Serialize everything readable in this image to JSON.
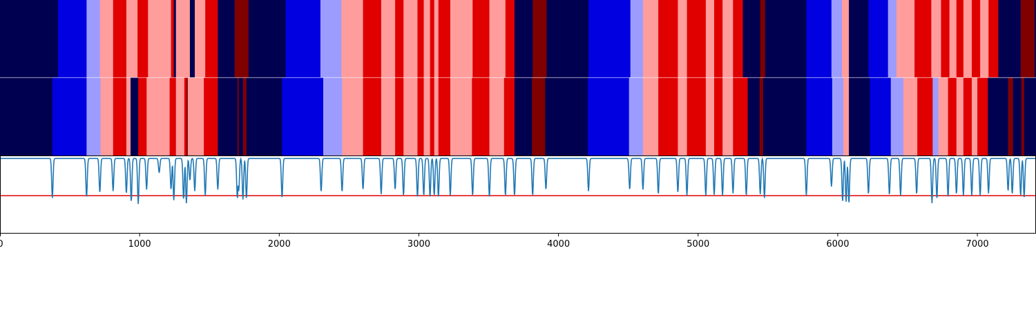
{
  "chart_data": [
    {
      "type": "heatmap",
      "name": "segmentation-track-1",
      "colors": {
        "0": "#000050",
        "1": "#0000e0",
        "2": "#9c9cff",
        "3": "#ff9c9c",
        "4": "#e00000",
        "5": "#800000"
      },
      "segments": [
        [
          0,
          415,
          0
        ],
        [
          415,
          620,
          1
        ],
        [
          620,
          715,
          2
        ],
        [
          715,
          810,
          3
        ],
        [
          810,
          905,
          4
        ],
        [
          905,
          985,
          3
        ],
        [
          985,
          1060,
          4
        ],
        [
          1060,
          1225,
          3
        ],
        [
          1225,
          1245,
          4
        ],
        [
          1245,
          1260,
          0
        ],
        [
          1260,
          1360,
          3
        ],
        [
          1360,
          1395,
          0
        ],
        [
          1395,
          1470,
          3
        ],
        [
          1470,
          1560,
          4
        ],
        [
          1560,
          1680,
          0
        ],
        [
          1680,
          1780,
          5
        ],
        [
          1780,
          2045,
          0
        ],
        [
          2045,
          2295,
          1
        ],
        [
          2295,
          2445,
          2
        ],
        [
          2445,
          2600,
          3
        ],
        [
          2600,
          2730,
          4
        ],
        [
          2730,
          2830,
          3
        ],
        [
          2830,
          2890,
          4
        ],
        [
          2890,
          2990,
          3
        ],
        [
          2990,
          3035,
          4
        ],
        [
          3035,
          3080,
          3
        ],
        [
          3080,
          3110,
          4
        ],
        [
          3110,
          3140,
          3
        ],
        [
          3140,
          3225,
          4
        ],
        [
          3225,
          3385,
          3
        ],
        [
          3385,
          3505,
          4
        ],
        [
          3505,
          3620,
          3
        ],
        [
          3620,
          3685,
          4
        ],
        [
          3685,
          3815,
          0
        ],
        [
          3815,
          3915,
          5
        ],
        [
          3915,
          4215,
          0
        ],
        [
          4215,
          4515,
          1
        ],
        [
          4515,
          4605,
          2
        ],
        [
          4605,
          4715,
          3
        ],
        [
          4715,
          4855,
          4
        ],
        [
          4855,
          4920,
          3
        ],
        [
          4920,
          5055,
          4
        ],
        [
          5055,
          5115,
          3
        ],
        [
          5115,
          5175,
          4
        ],
        [
          5175,
          5250,
          3
        ],
        [
          5250,
          5320,
          4
        ],
        [
          5320,
          5445,
          0
        ],
        [
          5445,
          5480,
          5
        ],
        [
          5480,
          5775,
          0
        ],
        [
          5775,
          5955,
          1
        ],
        [
          5955,
          6030,
          2
        ],
        [
          6030,
          6080,
          3
        ],
        [
          6080,
          6220,
          0
        ],
        [
          6220,
          6360,
          1
        ],
        [
          6360,
          6420,
          2
        ],
        [
          6420,
          6550,
          3
        ],
        [
          6550,
          6670,
          4
        ],
        [
          6670,
          6740,
          3
        ],
        [
          6740,
          6800,
          4
        ],
        [
          6800,
          6850,
          3
        ],
        [
          6850,
          6900,
          4
        ],
        [
          6900,
          6960,
          3
        ],
        [
          6960,
          7020,
          4
        ],
        [
          7020,
          7080,
          3
        ],
        [
          7080,
          7150,
          4
        ],
        [
          7150,
          7310,
          0
        ],
        [
          7310,
          7410,
          5
        ],
        [
          7410,
          7420,
          0
        ]
      ],
      "xlim": [
        0,
        7420
      ]
    },
    {
      "type": "heatmap",
      "name": "segmentation-track-2",
      "segments": [
        [
          0,
          375,
          0
        ],
        [
          375,
          620,
          1
        ],
        [
          620,
          720,
          2
        ],
        [
          720,
          810,
          3
        ],
        [
          810,
          905,
          4
        ],
        [
          905,
          935,
          3
        ],
        [
          935,
          990,
          0
        ],
        [
          990,
          1050,
          4
        ],
        [
          1050,
          1215,
          3
        ],
        [
          1215,
          1260,
          4
        ],
        [
          1260,
          1320,
          3
        ],
        [
          1320,
          1335,
          4
        ],
        [
          1335,
          1345,
          5
        ],
        [
          1345,
          1460,
          3
        ],
        [
          1460,
          1560,
          4
        ],
        [
          1560,
          1700,
          0
        ],
        [
          1700,
          1710,
          5
        ],
        [
          1710,
          1740,
          0
        ],
        [
          1740,
          1765,
          5
        ],
        [
          1765,
          2020,
          0
        ],
        [
          2020,
          2315,
          1
        ],
        [
          2315,
          2450,
          2
        ],
        [
          2450,
          2600,
          3
        ],
        [
          2600,
          2730,
          4
        ],
        [
          2730,
          2830,
          3
        ],
        [
          2830,
          2890,
          4
        ],
        [
          2890,
          2990,
          3
        ],
        [
          2990,
          3035,
          4
        ],
        [
          3035,
          3080,
          3
        ],
        [
          3080,
          3110,
          4
        ],
        [
          3110,
          3140,
          3
        ],
        [
          3140,
          3225,
          4
        ],
        [
          3225,
          3380,
          3
        ],
        [
          3380,
          3505,
          4
        ],
        [
          3505,
          3610,
          3
        ],
        [
          3610,
          3685,
          4
        ],
        [
          3685,
          3810,
          0
        ],
        [
          3810,
          3905,
          5
        ],
        [
          3905,
          4210,
          0
        ],
        [
          4210,
          4505,
          1
        ],
        [
          4505,
          4605,
          2
        ],
        [
          4605,
          4715,
          3
        ],
        [
          4715,
          4855,
          4
        ],
        [
          4855,
          4920,
          3
        ],
        [
          4920,
          5055,
          4
        ],
        [
          5055,
          5115,
          3
        ],
        [
          5115,
          5175,
          4
        ],
        [
          5175,
          5250,
          3
        ],
        [
          5250,
          5355,
          4
        ],
        [
          5355,
          5440,
          0
        ],
        [
          5440,
          5465,
          5
        ],
        [
          5465,
          5775,
          0
        ],
        [
          5775,
          5960,
          1
        ],
        [
          5960,
          6040,
          2
        ],
        [
          6040,
          6080,
          3
        ],
        [
          6080,
          6230,
          0
        ],
        [
          6230,
          6380,
          1
        ],
        [
          6380,
          6470,
          2
        ],
        [
          6470,
          6570,
          3
        ],
        [
          6570,
          6680,
          4
        ],
        [
          6680,
          6720,
          2
        ],
        [
          6720,
          6790,
          3
        ],
        [
          6790,
          6850,
          4
        ],
        [
          6850,
          6900,
          3
        ],
        [
          6900,
          6960,
          4
        ],
        [
          6960,
          7000,
          3
        ],
        [
          7000,
          7075,
          4
        ],
        [
          7075,
          7220,
          0
        ],
        [
          7220,
          7255,
          5
        ],
        [
          7255,
          7315,
          0
        ],
        [
          7315,
          7335,
          5
        ],
        [
          7335,
          7420,
          0
        ]
      ],
      "xlim": [
        0,
        7420
      ]
    },
    {
      "type": "line",
      "name": "confidence-track",
      "line_color": "#1f77b4",
      "threshold": 0.5,
      "threshold_color": "#e00000",
      "ylim": [
        0,
        1.02
      ],
      "baseline": 0.99,
      "dips": [
        [
          375,
          0.47
        ],
        [
          620,
          0.48
        ],
        [
          715,
          0.54
        ],
        [
          810,
          0.56
        ],
        [
          905,
          0.53
        ],
        [
          940,
          0.42
        ],
        [
          990,
          0.39
        ],
        [
          1050,
          0.58
        ],
        [
          1140,
          0.8
        ],
        [
          1225,
          0.58
        ],
        [
          1245,
          0.44
        ],
        [
          1315,
          0.45
        ],
        [
          1335,
          0.4
        ],
        [
          1360,
          0.7
        ],
        [
          1395,
          0.56
        ],
        [
          1470,
          0.5
        ],
        [
          1560,
          0.58
        ],
        [
          1700,
          0.46
        ],
        [
          1710,
          0.56
        ],
        [
          1740,
          0.45
        ],
        [
          1765,
          0.46
        ],
        [
          2020,
          0.47
        ],
        [
          2300,
          0.55
        ],
        [
          2450,
          0.55
        ],
        [
          2600,
          0.58
        ],
        [
          2730,
          0.52
        ],
        [
          2830,
          0.58
        ],
        [
          2890,
          0.5
        ],
        [
          2990,
          0.48
        ],
        [
          3035,
          0.5
        ],
        [
          3080,
          0.48
        ],
        [
          3110,
          0.5
        ],
        [
          3140,
          0.48
        ],
        [
          3225,
          0.5
        ],
        [
          3385,
          0.5
        ],
        [
          3505,
          0.48
        ],
        [
          3620,
          0.5
        ],
        [
          3685,
          0.5
        ],
        [
          3815,
          0.5
        ],
        [
          3910,
          0.58
        ],
        [
          4215,
          0.56
        ],
        [
          4510,
          0.58
        ],
        [
          4605,
          0.58
        ],
        [
          4715,
          0.52
        ],
        [
          4855,
          0.54
        ],
        [
          4920,
          0.5
        ],
        [
          5055,
          0.5
        ],
        [
          5115,
          0.51
        ],
        [
          5175,
          0.5
        ],
        [
          5250,
          0.53
        ],
        [
          5345,
          0.5
        ],
        [
          5445,
          0.52
        ],
        [
          5475,
          0.47
        ],
        [
          5775,
          0.5
        ],
        [
          5955,
          0.62
        ],
        [
          6035,
          0.42
        ],
        [
          6060,
          0.42
        ],
        [
          6080,
          0.4
        ],
        [
          6220,
          0.52
        ],
        [
          6370,
          0.51
        ],
        [
          6450,
          0.5
        ],
        [
          6565,
          0.52
        ],
        [
          6675,
          0.4
        ],
        [
          6710,
          0.46
        ],
        [
          6790,
          0.48
        ],
        [
          6850,
          0.52
        ],
        [
          6900,
          0.5
        ],
        [
          6960,
          0.5
        ],
        [
          7020,
          0.5
        ],
        [
          7080,
          0.53
        ],
        [
          7220,
          0.56
        ],
        [
          7250,
          0.52
        ],
        [
          7310,
          0.5
        ],
        [
          7335,
          0.48
        ]
      ],
      "xlim": [
        0,
        7420
      ]
    }
  ],
  "axis": {
    "xticks": [
      {
        "value": 0,
        "label": "0"
      },
      {
        "value": 1000,
        "label": "1000"
      },
      {
        "value": 2000,
        "label": "2000"
      },
      {
        "value": 3000,
        "label": "3000"
      },
      {
        "value": 4000,
        "label": "4000"
      },
      {
        "value": 5000,
        "label": "5000"
      },
      {
        "value": 6000,
        "label": "6000"
      },
      {
        "value": 7000,
        "label": "7000"
      }
    ]
  }
}
